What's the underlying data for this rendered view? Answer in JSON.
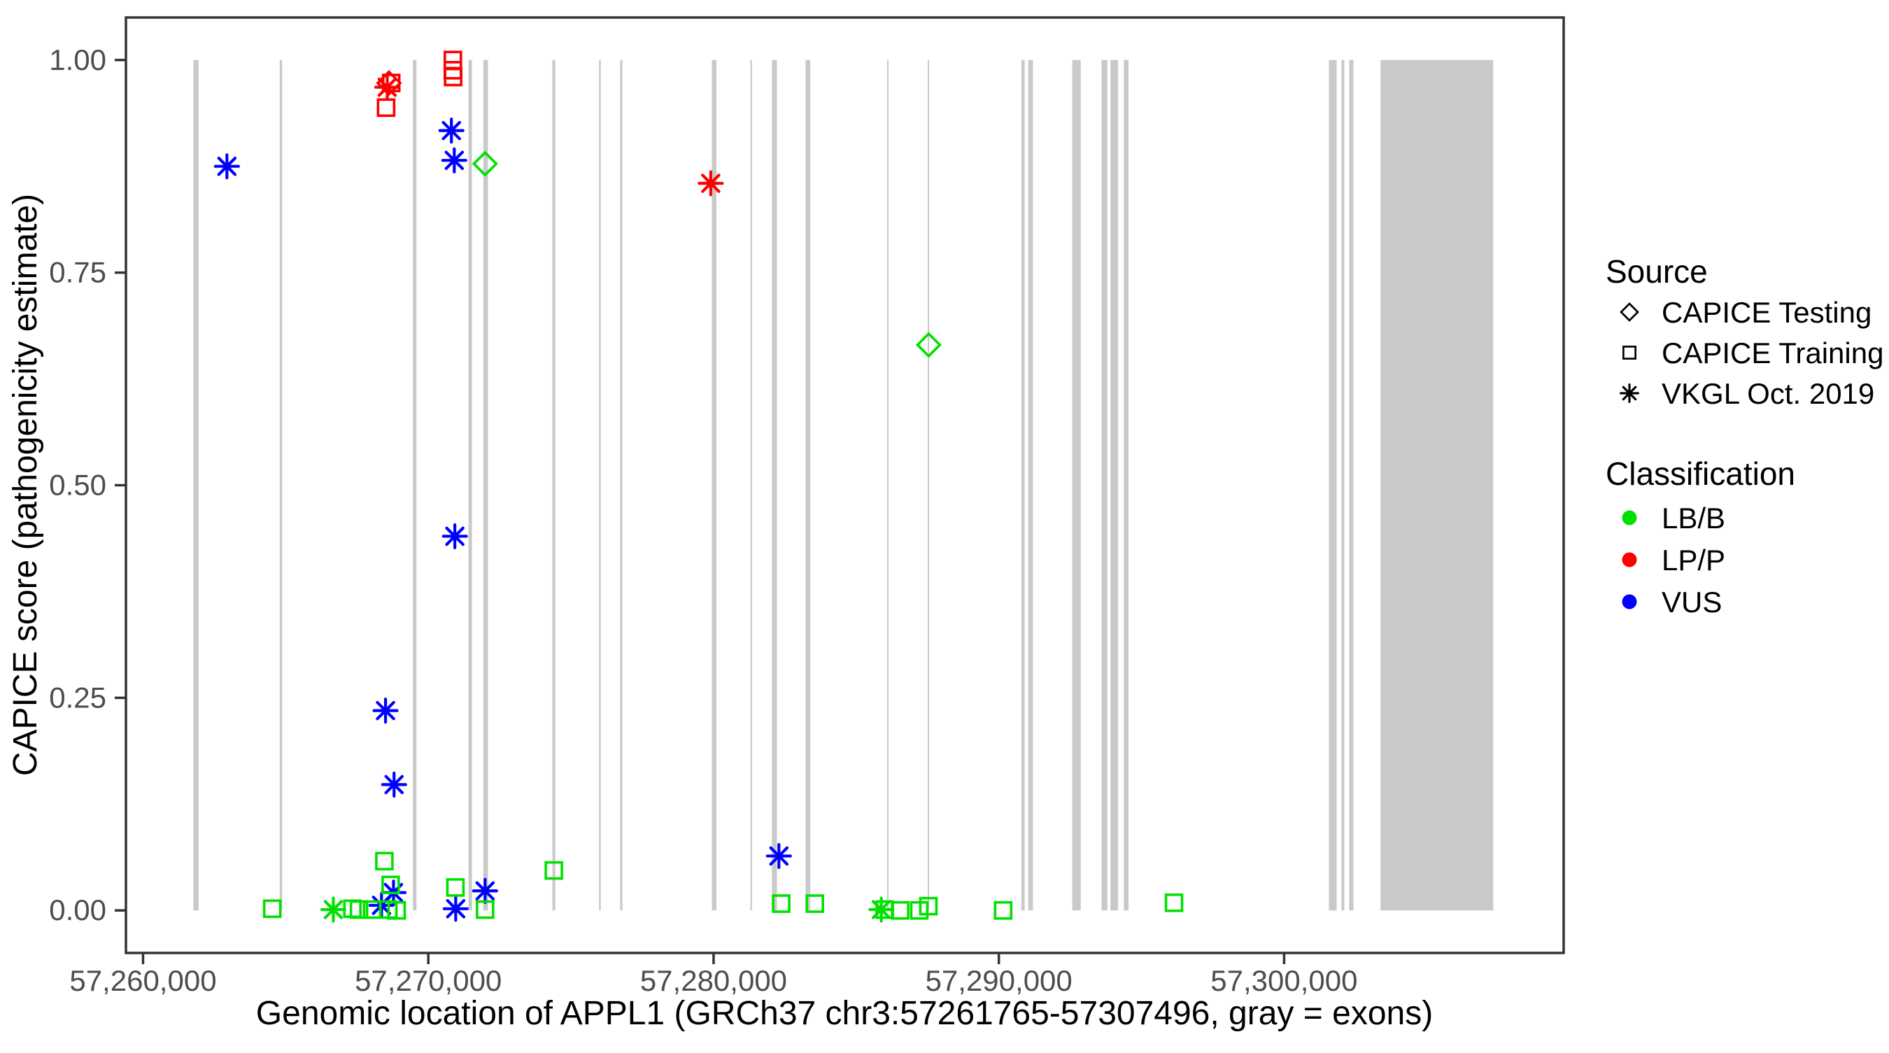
{
  "colors": {
    "exon": "#c9c9c9",
    "panel_border": "#333333",
    "tick": "#333333",
    "tick_label": "#4d4d4d",
    "lb_b": "#00e100",
    "lp_p": "#ff0000",
    "vus": "#0000ff",
    "legend_symbol": "#000000"
  },
  "chart_data": {
    "type": "scatter",
    "title": "",
    "xlabel": "Genomic location of APPL1 (GRCh37 chr3:57261765-57307496, gray = exons)",
    "ylabel": "CAPICE score (pathogenicity estimate)",
    "xlim": [
      57259400,
      57309800
    ],
    "ylim": [
      -0.05,
      1.05
    ],
    "grid": false,
    "legend_position": "right",
    "x_ticks": [
      {
        "value": 57260000,
        "label": "57,260,000"
      },
      {
        "value": 57270000,
        "label": "57,270,000"
      },
      {
        "value": 57280000,
        "label": "57,280,000"
      },
      {
        "value": 57290000,
        "label": "57,290,000"
      },
      {
        "value": 57300000,
        "label": "57,300,000"
      }
    ],
    "y_ticks": [
      {
        "value": 0.0,
        "label": "0.00"
      },
      {
        "value": 0.25,
        "label": "0.25"
      },
      {
        "value": 0.5,
        "label": "0.50"
      },
      {
        "value": 0.75,
        "label": "0.75"
      },
      {
        "value": 1.0,
        "label": "1.00"
      }
    ],
    "gene": {
      "name": "APPL1",
      "assembly": "GRCh37",
      "chrom": "chr3",
      "start": 57261765,
      "end": 57307496
    },
    "exons": [
      [
        57261765,
        57261950
      ],
      [
        57264790,
        57264875
      ],
      [
        57269460,
        57269585
      ],
      [
        57271410,
        57271530
      ],
      [
        57271930,
        57272090
      ],
      [
        57274350,
        57274450
      ],
      [
        57275985,
        57276045
      ],
      [
        57276725,
        57276805
      ],
      [
        57279940,
        57280100
      ],
      [
        57281290,
        57281345
      ],
      [
        57282045,
        57282220
      ],
      [
        57283225,
        57283390
      ],
      [
        57286085,
        57286135
      ],
      [
        57287505,
        57287555
      ],
      [
        57290790,
        57290905
      ],
      [
        57291030,
        57291195
      ],
      [
        57292575,
        57292870
      ],
      [
        57293600,
        57293805
      ],
      [
        57293910,
        57294180
      ],
      [
        57294380,
        57294545
      ],
      [
        57301570,
        57301840
      ],
      [
        57302010,
        57302110
      ],
      [
        57302280,
        57302430
      ],
      [
        57303380,
        57307330
      ]
    ],
    "series": [
      {
        "name": "LP/P",
        "color_key": "lp_p",
        "points": [
          {
            "bp": 57268620,
            "score": 0.973,
            "symbol": "diamond"
          },
          {
            "bp": 57268700,
            "score": 0.973,
            "symbol": "square"
          },
          {
            "bp": 57268560,
            "score": 0.968,
            "symbol": "asterisk"
          },
          {
            "bp": 57268520,
            "score": 0.944,
            "symbol": "square"
          },
          {
            "bp": 57270860,
            "score": 1.0,
            "symbol": "square"
          },
          {
            "bp": 57270860,
            "score": 0.988,
            "symbol": "square"
          },
          {
            "bp": 57270870,
            "score": 0.98,
            "symbol": "square"
          },
          {
            "bp": 57279900,
            "score": 0.855,
            "symbol": "asterisk"
          }
        ]
      },
      {
        "name": "VUS",
        "color_key": "vus",
        "points": [
          {
            "bp": 57262940,
            "score": 0.875,
            "symbol": "asterisk"
          },
          {
            "bp": 57270810,
            "score": 0.917,
            "symbol": "asterisk"
          },
          {
            "bp": 57270910,
            "score": 0.882,
            "symbol": "asterisk"
          },
          {
            "bp": 57270930,
            "score": 0.44,
            "symbol": "asterisk"
          },
          {
            "bp": 57268500,
            "score": 0.235,
            "symbol": "asterisk"
          },
          {
            "bp": 57268800,
            "score": 0.148,
            "symbol": "asterisk"
          },
          {
            "bp": 57268360,
            "score": 0.006,
            "symbol": "asterisk"
          },
          {
            "bp": 57268780,
            "score": 0.021,
            "symbol": "asterisk"
          },
          {
            "bp": 57270960,
            "score": 0.002,
            "symbol": "asterisk"
          },
          {
            "bp": 57271990,
            "score": 0.023,
            "symbol": "asterisk"
          },
          {
            "bp": 57282290,
            "score": 0.064,
            "symbol": "asterisk"
          }
        ]
      },
      {
        "name": "LB/B",
        "color_key": "lb_b",
        "points": [
          {
            "bp": 57271990,
            "score": 0.878,
            "symbol": "diamond"
          },
          {
            "bp": 57287540,
            "score": 0.665,
            "symbol": "diamond"
          },
          {
            "bp": 57266670,
            "score": 0.001,
            "symbol": "asterisk"
          },
          {
            "bp": 57285880,
            "score": 0.001,
            "symbol": "asterisk"
          },
          {
            "bp": 57264530,
            "score": 0.002,
            "symbol": "square"
          },
          {
            "bp": 57267340,
            "score": 0.002,
            "symbol": "square"
          },
          {
            "bp": 57267570,
            "score": 0.001,
            "symbol": "square"
          },
          {
            "bp": 57268030,
            "score": 0.001,
            "symbol": "square"
          },
          {
            "bp": 57268460,
            "score": 0.058,
            "symbol": "square"
          },
          {
            "bp": 57268680,
            "score": 0.03,
            "symbol": "square"
          },
          {
            "bp": 57268600,
            "score": 0.001,
            "symbol": "square"
          },
          {
            "bp": 57268890,
            "score": 0.0,
            "symbol": "square"
          },
          {
            "bp": 57270950,
            "score": 0.027,
            "symbol": "square"
          },
          {
            "bp": 57271990,
            "score": 0.001,
            "symbol": "square"
          },
          {
            "bp": 57274400,
            "score": 0.047,
            "symbol": "square"
          },
          {
            "bp": 57282370,
            "score": 0.008,
            "symbol": "square"
          },
          {
            "bp": 57283550,
            "score": 0.008,
            "symbol": "square"
          },
          {
            "bp": 57286000,
            "score": 0.001,
            "symbol": "square"
          },
          {
            "bp": 57286540,
            "score": 0.0,
            "symbol": "square"
          },
          {
            "bp": 57287210,
            "score": 0.0,
            "symbol": "square"
          },
          {
            "bp": 57287530,
            "score": 0.005,
            "symbol": "square"
          },
          {
            "bp": 57290150,
            "score": 0.0,
            "symbol": "square"
          },
          {
            "bp": 57296140,
            "score": 0.009,
            "symbol": "square"
          }
        ]
      }
    ]
  },
  "legend": {
    "source": {
      "title": "Source",
      "items": [
        {
          "symbol": "diamond",
          "label": "CAPICE Testing"
        },
        {
          "symbol": "square",
          "label": "CAPICE Training"
        },
        {
          "symbol": "asterisk",
          "label": "VKGL Oct. 2019"
        }
      ]
    },
    "classification": {
      "title": "Classification",
      "items": [
        {
          "color_key": "lb_b",
          "label": "LB/B"
        },
        {
          "color_key": "lp_p",
          "label": "LP/P"
        },
        {
          "color_key": "vus",
          "label": "VUS"
        }
      ]
    }
  }
}
